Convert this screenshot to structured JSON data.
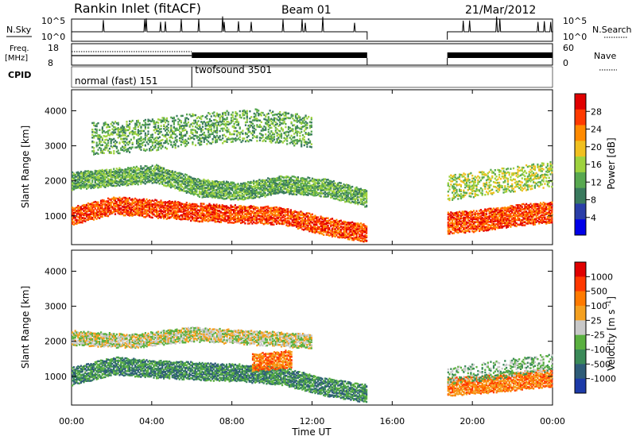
{
  "header": {
    "station": "Rankin Inlet (fitACF)",
    "beam": "Beam 01",
    "date": "21/Mar/2012"
  },
  "status_panels": {
    "nsky_label": "N.Sky",
    "nsky_ticks": [
      "10^5",
      "10^0"
    ],
    "nsearch_label": "N.Search",
    "nsearch_ticks": [
      "10^5",
      "10^0"
    ],
    "freq_label": "Freq.",
    "freq_unit": "[MHz]",
    "freq_ticks": [
      "18",
      "8"
    ],
    "nave_label": "Nave",
    "nave_ticks": [
      "60",
      "0"
    ],
    "cpid_label": "CPID",
    "cpid_modes": [
      {
        "name": "normal (fast) 151",
        "start_hour": 0,
        "end_hour": 6
      },
      {
        "name": "twofsound 3501",
        "start_hour": 6,
        "end_hour": 24
      }
    ],
    "freq_step_hour": 6,
    "data_gap": [
      14.75,
      18.75
    ]
  },
  "chart_data": [
    {
      "type": "heatmap",
      "panel": "power",
      "ylabel": "Slant Range [km]",
      "ylim": [
        180,
        4600
      ],
      "yticks": [
        1000,
        2000,
        3000,
        4000
      ],
      "xlim": [
        0,
        24
      ],
      "colorbar_label": "Power [dB]",
      "colorbar_ticks": [
        "28",
        "24",
        "20",
        "16",
        "12",
        "8",
        "4"
      ],
      "colorbar_range": [
        0,
        30
      ],
      "colormap": [
        "#0000e8",
        "#2a3ea8",
        "#3a7a5e",
        "#58a850",
        "#9ed23e",
        "#f0c020",
        "#ff8a00",
        "#ff3a00",
        "#e00000"
      ],
      "regions": [
        {
          "t": [
            0,
            14.75
          ],
          "center": [
            1000,
            1300,
            1200,
            1100,
            1050,
            1000,
            700,
            500
          ],
          "width": 500,
          "level": 26
        },
        {
          "t": [
            0,
            14.75
          ],
          "center": [
            2000,
            2100,
            2200,
            1800,
            1700,
            1900,
            1800,
            1500
          ],
          "width": 500,
          "level": 12
        },
        {
          "t": [
            1,
            12
          ],
          "center": [
            3200,
            3300,
            3500,
            3600,
            3400
          ],
          "width": 900,
          "level": 12,
          "sparse": true
        },
        {
          "t": [
            18.75,
            24
          ],
          "center": [
            800,
            850,
            950,
            1050,
            1100
          ],
          "width": 600,
          "level": 28
        },
        {
          "t": [
            18.75,
            24
          ],
          "center": [
            1800,
            1900,
            2000,
            2100,
            2200
          ],
          "width": 700,
          "level": 14,
          "sparse": true
        }
      ]
    },
    {
      "type": "heatmap",
      "panel": "velocity",
      "ylabel": "Slant Range [km]",
      "xlabel": "Time UT",
      "ylim": [
        180,
        4600
      ],
      "yticks": [
        1000,
        2000,
        3000,
        4000
      ],
      "xlim": [
        0,
        24
      ],
      "xticks": [
        "00:00",
        "04:00",
        "08:00",
        "12:00",
        "16:00",
        "20:00",
        "00:00"
      ],
      "colorbar_label": "Velocity [m s^-1]",
      "colorbar_ticks": [
        "1000",
        "500",
        "100",
        "25",
        "-25",
        "-100",
        "-500",
        "-1000"
      ],
      "colormap": [
        "#1c3aa8",
        "#2e5c78",
        "#3a8a58",
        "#5ab040",
        "#c8c8c8",
        "#f4a020",
        "#ff7a00",
        "#ff3800",
        "#e00000"
      ],
      "regions": [
        {
          "t": [
            0,
            14.75
          ],
          "center": [
            1000,
            1300,
            1200,
            1150,
            1100,
            1000,
            700,
            500
          ],
          "width": 500,
          "level": 2
        },
        {
          "t": [
            0,
            12
          ],
          "center": [
            2100,
            2000,
            2200,
            2100,
            2000
          ],
          "width": 400,
          "level": 4
        },
        {
          "t": [
            9,
            11
          ],
          "center": [
            1400,
            1500
          ],
          "width": 500,
          "level": 6
        },
        {
          "t": [
            18.75,
            24
          ],
          "center": [
            700,
            750,
            800,
            900,
            950
          ],
          "width": 500,
          "level": 6
        },
        {
          "t": [
            18.75,
            24
          ],
          "center": [
            1000,
            1100,
            1200,
            1300,
            1400
          ],
          "width": 500,
          "level": 3,
          "sparse": true
        }
      ]
    }
  ]
}
